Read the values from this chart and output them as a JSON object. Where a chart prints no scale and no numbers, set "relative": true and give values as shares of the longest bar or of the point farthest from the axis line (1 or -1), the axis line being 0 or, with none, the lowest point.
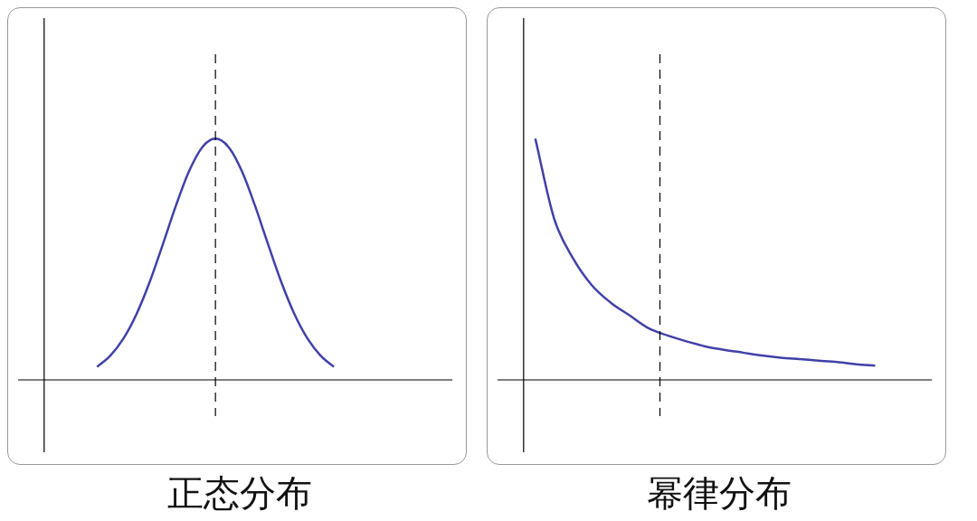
{
  "chart_data": [
    {
      "type": "line",
      "title": "正态分布",
      "relative": true,
      "categories": [
        null,
        null,
        null,
        null,
        null,
        null,
        null,
        null,
        null,
        null,
        null,
        null,
        null,
        null,
        null,
        null,
        null,
        null,
        null,
        null,
        null,
        null,
        null,
        null,
        null,
        null,
        null,
        null,
        null,
        null,
        null,
        null,
        null,
        null
      ],
      "series": [
        {
          "color": "#4040a8",
          "values": [
            null,
            null,
            null,
            null,
            null,
            null,
            0.054,
            0.1,
            0.171,
            0.273,
            0.406,
            0.562,
            0.723,
            0.866,
            0.965,
            1,
            0.965,
            0.866,
            0.723,
            0.562,
            0.406,
            0.273,
            0.171,
            0.1,
            0.054,
            null,
            null,
            null,
            null,
            null,
            null,
            null,
            null,
            null
          ]
        }
      ],
      "marker": "none",
      "legend": false,
      "tick_labels": false
    },
    {
      "type": "line",
      "title": "幂律分布",
      "relative": true,
      "categories": [
        null,
        null,
        null,
        null,
        null,
        null,
        null,
        null,
        null,
        null,
        null,
        null,
        null,
        null,
        null,
        null,
        null,
        null,
        null,
        null,
        null,
        null,
        null,
        null
      ],
      "series": [
        {
          "color": "#4040a8",
          "values": [
            null,
            null,
            1,
            0.668,
            0.504,
            0.392,
            0.32,
            0.267,
            0.214,
            0.184,
            0.16,
            0.139,
            0.125,
            0.113,
            0.101,
            0.092,
            0.086,
            0.08,
            0.074,
            0.065,
            0.059,
            null,
            null,
            null
          ]
        }
      ],
      "marker": "none",
      "legend": false,
      "tick_labels": false
    }
  ]
}
